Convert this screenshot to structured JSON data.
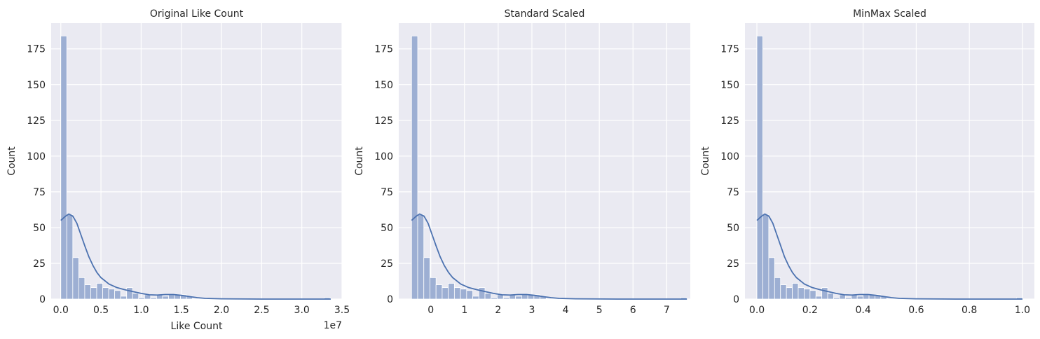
{
  "chart_data": [
    {
      "type": "histogram",
      "title": "Original Like Count",
      "xlabel": "Like Count",
      "ylabel": "Count",
      "x_offset_label": "1e7",
      "xlim": [
        -0.12,
        3.5
      ],
      "ylim": [
        0,
        193
      ],
      "xticks": [
        0.0,
        0.5,
        1.0,
        1.5,
        2.0,
        2.5,
        3.0,
        3.5
      ],
      "xtick_labels": [
        "0.0",
        "0.5",
        "1.0",
        "1.5",
        "2.0",
        "2.5",
        "3.0",
        "3.5"
      ],
      "yticks": [
        0,
        25,
        50,
        75,
        100,
        125,
        150,
        175
      ],
      "ytick_labels": [
        "0",
        "25",
        "50",
        "75",
        "100",
        "125",
        "150",
        "175"
      ],
      "grid": true,
      "bin_start": 0.0,
      "bin_width": 0.0745,
      "counts": [
        184,
        59,
        29,
        15,
        10,
        8,
        11,
        8,
        7,
        6,
        2,
        8,
        4,
        1,
        3,
        1,
        3,
        2,
        3,
        3,
        3,
        2,
        0,
        0,
        0,
        0,
        0,
        0,
        0,
        0,
        0,
        0,
        0,
        0,
        0,
        0,
        0,
        0,
        0,
        0,
        0,
        0,
        0,
        0,
        1
      ],
      "kde": [
        [
          0.0,
          55
        ],
        [
          0.06,
          58
        ],
        [
          0.1,
          59.5
        ],
        [
          0.15,
          58
        ],
        [
          0.2,
          53
        ],
        [
          0.25,
          45
        ],
        [
          0.3,
          37
        ],
        [
          0.35,
          29.5
        ],
        [
          0.4,
          23.5
        ],
        [
          0.45,
          18.5
        ],
        [
          0.5,
          15
        ],
        [
          0.6,
          10.5
        ],
        [
          0.7,
          8
        ],
        [
          0.8,
          6.5
        ],
        [
          0.9,
          5.2
        ],
        [
          1.0,
          4
        ],
        [
          1.1,
          3
        ],
        [
          1.2,
          2.8
        ],
        [
          1.3,
          3.2
        ],
        [
          1.4,
          3.2
        ],
        [
          1.5,
          2.6
        ],
        [
          1.6,
          1.8
        ],
        [
          1.7,
          1
        ],
        [
          1.8,
          0.5
        ],
        [
          2.0,
          0.2
        ],
        [
          2.5,
          0
        ],
        [
          3.0,
          0
        ],
        [
          3.36,
          0
        ]
      ]
    },
    {
      "type": "histogram",
      "title": "Standard Scaled",
      "xlabel": "",
      "ylabel": "Count",
      "x_offset_label": "",
      "xlim": [
        -0.95,
        7.7
      ],
      "ylim": [
        0,
        193
      ],
      "xticks": [
        0,
        1,
        2,
        3,
        4,
        5,
        6,
        7
      ],
      "xtick_labels": [
        "0",
        "1",
        "2",
        "3",
        "4",
        "5",
        "6",
        "7"
      ],
      "yticks": [
        0,
        25,
        50,
        75,
        100,
        125,
        150,
        175
      ],
      "ytick_labels": [
        "0",
        "25",
        "50",
        "75",
        "100",
        "125",
        "150",
        "175"
      ],
      "grid": true,
      "bin_start": -0.57,
      "bin_width": 0.1815,
      "counts": [
        184,
        59,
        29,
        15,
        10,
        8,
        11,
        8,
        7,
        6,
        2,
        8,
        4,
        1,
        3,
        1,
        3,
        2,
        3,
        3,
        3,
        2,
        0,
        0,
        0,
        0,
        0,
        0,
        0,
        0,
        0,
        0,
        0,
        0,
        0,
        0,
        0,
        0,
        0,
        0,
        0,
        0,
        0,
        0,
        1
      ],
      "kde": [
        [
          -0.57,
          55
        ],
        [
          -0.43,
          58
        ],
        [
          -0.33,
          59.5
        ],
        [
          -0.2,
          58
        ],
        [
          -0.08,
          53
        ],
        [
          0.04,
          45
        ],
        [
          0.16,
          37
        ],
        [
          0.28,
          29.5
        ],
        [
          0.4,
          23.5
        ],
        [
          0.53,
          18.5
        ],
        [
          0.65,
          15
        ],
        [
          0.89,
          10.5
        ],
        [
          1.13,
          8
        ],
        [
          1.38,
          6.5
        ],
        [
          1.62,
          5.2
        ],
        [
          1.86,
          4
        ],
        [
          2.11,
          3
        ],
        [
          2.35,
          2.8
        ],
        [
          2.59,
          3.2
        ],
        [
          2.84,
          3.2
        ],
        [
          3.08,
          2.6
        ],
        [
          3.32,
          1.8
        ],
        [
          3.57,
          1
        ],
        [
          3.81,
          0.5
        ],
        [
          4.3,
          0.2
        ],
        [
          5.52,
          0
        ],
        [
          6.73,
          0
        ],
        [
          7.6,
          0
        ]
      ]
    },
    {
      "type": "histogram",
      "title": "MinMax Scaled",
      "xlabel": "",
      "ylabel": "Count",
      "x_offset_label": "",
      "xlim": [
        -0.045,
        1.045
      ],
      "ylim": [
        0,
        193
      ],
      "xticks": [
        0.0,
        0.2,
        0.4,
        0.6,
        0.8,
        1.0
      ],
      "xtick_labels": [
        "0.0",
        "0.2",
        "0.4",
        "0.6",
        "0.8",
        "1.0"
      ],
      "yticks": [
        0,
        25,
        50,
        75,
        100,
        125,
        150,
        175
      ],
      "ytick_labels": [
        "0",
        "25",
        "50",
        "75",
        "100",
        "125",
        "150",
        "175"
      ],
      "grid": true,
      "bin_start": 0.0,
      "bin_width": 0.02222,
      "counts": [
        184,
        59,
        29,
        15,
        10,
        8,
        11,
        8,
        7,
        6,
        2,
        8,
        4,
        1,
        3,
        1,
        3,
        2,
        3,
        3,
        3,
        2,
        0,
        0,
        0,
        0,
        0,
        0,
        0,
        0,
        0,
        0,
        0,
        0,
        0,
        0,
        0,
        0,
        0,
        0,
        0,
        0,
        0,
        0,
        1
      ],
      "kde": [
        [
          0.0,
          55
        ],
        [
          0.018,
          58
        ],
        [
          0.03,
          59.5
        ],
        [
          0.045,
          58
        ],
        [
          0.06,
          53
        ],
        [
          0.075,
          45
        ],
        [
          0.09,
          37
        ],
        [
          0.104,
          29.5
        ],
        [
          0.119,
          23.5
        ],
        [
          0.134,
          18.5
        ],
        [
          0.149,
          15
        ],
        [
          0.179,
          10.5
        ],
        [
          0.209,
          8
        ],
        [
          0.239,
          6.5
        ],
        [
          0.269,
          5.2
        ],
        [
          0.298,
          4
        ],
        [
          0.328,
          3
        ],
        [
          0.358,
          2.8
        ],
        [
          0.388,
          3.2
        ],
        [
          0.418,
          3.2
        ],
        [
          0.448,
          2.6
        ],
        [
          0.478,
          1.8
        ],
        [
          0.507,
          1
        ],
        [
          0.537,
          0.5
        ],
        [
          0.597,
          0.2
        ],
        [
          0.746,
          0
        ],
        [
          0.896,
          0
        ],
        [
          1.0,
          0
        ]
      ]
    }
  ],
  "colors": {
    "plot_background": "#eaeaf2",
    "grid": "#ffffff",
    "bar_fill": "#9dafd3",
    "bar_edge": "#ffffff",
    "kde_line": "#4c72b0",
    "text": "#262626"
  }
}
